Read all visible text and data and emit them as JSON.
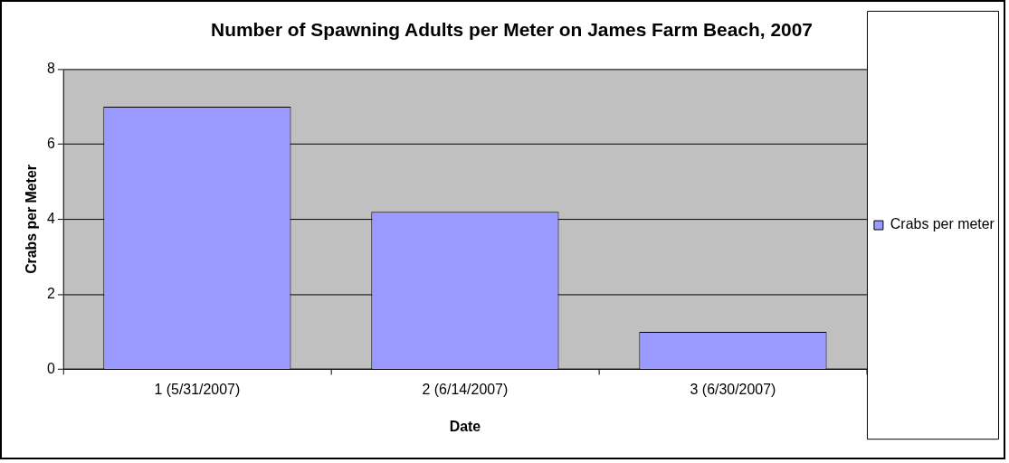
{
  "chart_data": {
    "type": "bar",
    "title": "Number of Spawning Adults per Meter on James Farm Beach, 2007",
    "xlabel": "Date",
    "ylabel": "Crabs per Meter",
    "categories": [
      "1 (5/31/2007)",
      "2 (6/14/2007)",
      "3 (6/30/2007)"
    ],
    "series": [
      {
        "name": "Crabs per meter",
        "color": "#9999ff",
        "values": [
          7,
          4.2,
          1
        ]
      }
    ],
    "ylim": [
      0,
      8
    ],
    "yticks": [
      0,
      2,
      4,
      6,
      8
    ],
    "grid": "y",
    "legend": "right"
  }
}
